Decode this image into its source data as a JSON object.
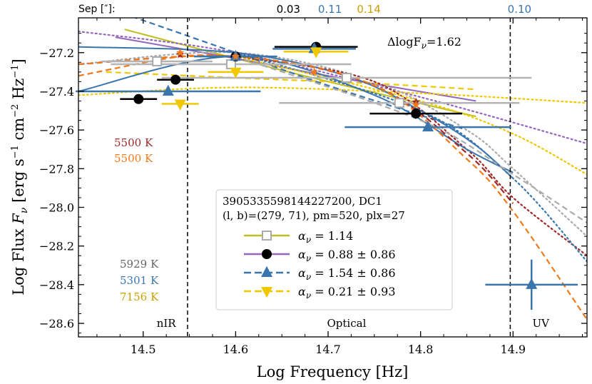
{
  "chart_data": {
    "type": "scatter",
    "xlabel": "Log Frequency [Hz]",
    "ylabel": "Log Flux F_ν [erg s⁻¹ cm⁻² Hz⁻¹]",
    "ylabel_parts": {
      "main": "Log Flux ",
      "F": "F",
      "nu": "ν",
      "open": " [erg s",
      "m1": "−1",
      "cm": " cm",
      "m2": "−2",
      "hz": " Hz",
      "m3": "−1",
      "close": "]"
    },
    "xlim": [
      14.43,
      14.98
    ],
    "ylim": [
      -28.67,
      -27.02
    ],
    "xticks": [
      {
        "value": 14.5,
        "label": "14.5"
      },
      {
        "value": 14.6,
        "label": "14.6"
      },
      {
        "value": 14.7,
        "label": "14.7"
      },
      {
        "value": 14.8,
        "label": "14.8"
      },
      {
        "value": 14.9,
        "label": "14.9"
      }
    ],
    "yticks": [
      {
        "value": -27.2,
        "label": "−27.2"
      },
      {
        "value": -27.4,
        "label": "−27.4"
      },
      {
        "value": -27.6,
        "label": "−27.6"
      },
      {
        "value": -27.8,
        "label": "−27.8"
      },
      {
        "value": -28.0,
        "label": "−28.0"
      },
      {
        "value": -28.2,
        "label": "−28.2"
      },
      {
        "value": -28.4,
        "label": "−28.4"
      },
      {
        "value": -28.6,
        "label": "−28.6"
      }
    ],
    "vlines": [
      14.548,
      14.897
    ],
    "region_labels": [
      {
        "text": "nIR",
        "x": 14.525,
        "y": -28.6
      },
      {
        "text": "Optical",
        "x": 14.72,
        "y": -28.6
      },
      {
        "text": "UV",
        "x": 14.93,
        "y": -28.6
      }
    ],
    "sep": {
      "label": "Sep [″]:",
      "values": [
        {
          "text": "0.03",
          "color": "#000000",
          "x": 14.657
        },
        {
          "text": "0.11",
          "color": "#3a76ad",
          "x": 14.702
        },
        {
          "text": "0.14",
          "color": "#c9a100",
          "x": 14.744
        },
        {
          "text": "0.10",
          "color": "#3a76ad",
          "x": 14.907
        }
      ]
    },
    "delta_label": "ΔlogF_ν=1.62",
    "delta_parts": {
      "pre": "ΔlogF",
      "sub": "ν",
      "post": "=1.62"
    },
    "temps_top": [
      {
        "text": "5500 K",
        "color": "#a02828"
      },
      {
        "text": "5500 K",
        "color": "#f07a1a"
      }
    ],
    "temps_bottom": [
      {
        "text": "5929 K",
        "color": "#666666"
      },
      {
        "text": "5301 K",
        "color": "#3a76ad"
      },
      {
        "text": "7156 K",
        "color": "#c9a100"
      }
    ],
    "legend": {
      "position": "center-right",
      "title1": "3905335598144227200, DC1",
      "title2": "(l, b)=(279, 71), pm=520, plx=27",
      "entries": [
        {
          "label": "α_ν = 1.14",
          "alpha": "1.14",
          "marker": "square-open",
          "color": "#bfbf1f",
          "line": "solid"
        },
        {
          "label": "α_ν = 0.88 ± 0.86",
          "alpha": "0.88 ± 0.86",
          "marker": "circle",
          "color": "#9467bd",
          "line": "solid"
        },
        {
          "label": "α_ν = 1.54 ± 0.86",
          "alpha": "1.54 ± 0.86",
          "marker": "triangle-up",
          "color": "#3a76ad",
          "line": "dashed"
        },
        {
          "label": "α_ν = 0.21 ± 0.93",
          "alpha": "0.21 ± 0.93",
          "marker": "triangle-down",
          "color": "#f0c800",
          "line": "dashed"
        }
      ]
    },
    "series": [
      {
        "name": "gray squares",
        "marker": "square-open",
        "color": "#aaaaaa",
        "points": [
          {
            "x": 14.515,
            "y": -27.245,
            "xerr": 0.06
          },
          {
            "x": 14.595,
            "y": -27.26,
            "xerr": 0.13
          },
          {
            "x": 14.72,
            "y": -27.33,
            "xerr": 0.2
          },
          {
            "x": 14.777,
            "y": -27.46,
            "xerr": 0.13
          }
        ]
      },
      {
        "name": "black circles",
        "marker": "circle",
        "color": "#000000",
        "points": [
          {
            "x": 14.495,
            "y": -27.44,
            "xerr": 0.02
          },
          {
            "x": 14.535,
            "y": -27.34,
            "xerr": 0.02
          },
          {
            "x": 14.6,
            "y": -27.22,
            "xerr": 0.03
          },
          {
            "x": 14.687,
            "y": -27.17,
            "xerr": 0.045
          },
          {
            "x": 14.795,
            "y": -27.515,
            "xerr": 0.05
          }
        ]
      },
      {
        "name": "blue triangles",
        "marker": "triangle-up",
        "color": "#3a76ad",
        "points": [
          {
            "x": 14.527,
            "y": -27.4,
            "xerr": 0.1
          },
          {
            "x": 14.6,
            "y": -27.22,
            "xerr": 0.045
          },
          {
            "x": 14.685,
            "y": -27.18,
            "xerr": 0.045
          },
          {
            "x": 14.808,
            "y": -27.585,
            "xerr": 0.09
          },
          {
            "x": 14.92,
            "y": -28.4,
            "xerr": 0.05,
            "yerr": 0.13
          }
        ]
      },
      {
        "name": "yellow triangles",
        "marker": "triangle-down",
        "color": "#f0c800",
        "points": [
          {
            "x": 14.54,
            "y": -27.465,
            "xerr": 0.02
          },
          {
            "x": 14.6,
            "y": -27.3,
            "xerr": 0.03
          },
          {
            "x": 14.687,
            "y": -27.195,
            "xerr": 0.035
          }
        ]
      },
      {
        "name": "red stars",
        "marker": "star",
        "color": "#a02828",
        "points": [
          {
            "x": 14.54,
            "y": -27.21
          },
          {
            "x": 14.6,
            "y": -27.22
          },
          {
            "x": 14.795,
            "y": -27.455
          }
        ]
      },
      {
        "name": "orange stars",
        "marker": "star",
        "color": "#f07a1a",
        "points": [
          {
            "x": 14.54,
            "y": -27.2
          },
          {
            "x": 14.6,
            "y": -27.22
          },
          {
            "x": 14.685,
            "y": -27.3
          },
          {
            "x": 14.795,
            "y": -27.47
          }
        ]
      }
    ],
    "curves": [
      {
        "name": "olive power law",
        "color": "#bfbf1f",
        "dash": "",
        "width": 2,
        "points": [
          [
            14.48,
            -27.08
          ],
          [
            14.6,
            -27.23
          ],
          [
            14.7,
            -27.35
          ],
          [
            14.86,
            -27.53
          ]
        ]
      },
      {
        "name": "purple power law",
        "color": "#9467bd",
        "dash": "",
        "width": 2,
        "points": [
          [
            14.47,
            -27.12
          ],
          [
            14.6,
            -27.23
          ],
          [
            14.7,
            -27.32
          ],
          [
            14.86,
            -27.45
          ]
        ]
      },
      {
        "name": "blue power law",
        "color": "#3a76ad",
        "dash": "8,5",
        "width": 2.2,
        "points": [
          [
            14.45,
            -26.95
          ],
          [
            14.6,
            -27.2
          ],
          [
            14.7,
            -27.37
          ],
          [
            14.85,
            -27.6
          ]
        ]
      },
      {
        "name": "yellow power law",
        "color": "#f0c800",
        "dash": "8,5",
        "width": 2.2,
        "points": [
          [
            14.46,
            -27.3
          ],
          [
            14.6,
            -27.33
          ],
          [
            14.75,
            -27.36
          ],
          [
            14.86,
            -27.39
          ]
        ]
      },
      {
        "name": "purple dotted",
        "color": "#9467bd",
        "dash": "2,4",
        "width": 2.2,
        "points": [
          [
            14.43,
            -27.09
          ],
          [
            14.6,
            -27.2
          ],
          [
            14.8,
            -27.43
          ],
          [
            14.98,
            -27.67
          ]
        ]
      },
      {
        "name": "yellow dotted",
        "color": "#f0c800",
        "dash": "2,4",
        "width": 2.2,
        "points": [
          [
            14.43,
            -27.42
          ],
          [
            14.6,
            -27.38
          ],
          [
            14.8,
            -27.41
          ],
          [
            14.98,
            -27.46
          ]
        ]
      },
      {
        "name": "gray dotted",
        "color": "#aaaaaa",
        "dash": "2,4",
        "width": 2.2,
        "points": [
          [
            14.43,
            -27.26
          ],
          [
            14.6,
            -27.2
          ],
          [
            14.75,
            -27.35
          ],
          [
            14.85,
            -27.6
          ],
          [
            14.9,
            -27.8
          ],
          [
            14.98,
            -28.15
          ]
        ]
      },
      {
        "name": "red dotted",
        "color": "#a02828",
        "dash": "2,4",
        "width": 2.2,
        "points": [
          [
            14.6,
            -27.22
          ],
          [
            14.75,
            -27.35
          ],
          [
            14.85,
            -27.7
          ],
          [
            14.9,
            -27.95
          ],
          [
            14.98,
            -28.25
          ]
        ]
      },
      {
        "name": "blue dotted",
        "color": "#3a76ad",
        "dash": "2,4",
        "width": 2.2,
        "points": [
          [
            14.6,
            -27.2
          ],
          [
            14.8,
            -27.5
          ],
          [
            14.9,
            -27.85
          ],
          [
            14.98,
            -28.28
          ]
        ]
      },
      {
        "name": "gold dotted",
        "color": "#f0c800",
        "dash": "2,4",
        "width": 2.2,
        "points": [
          [
            14.6,
            -27.22
          ],
          [
            14.8,
            -27.45
          ],
          [
            14.9,
            -27.62
          ],
          [
            14.98,
            -27.83
          ]
        ]
      },
      {
        "name": "blue solid",
        "color": "#3a76ad",
        "dash": "",
        "width": 2,
        "points": [
          [
            14.43,
            -27.17
          ],
          [
            14.6,
            -27.2
          ],
          [
            14.72,
            -27.32
          ],
          [
            14.8,
            -27.5
          ],
          [
            14.86,
            -27.68
          ],
          [
            14.9,
            -27.85
          ]
        ]
      },
      {
        "name": "blue solid model 2",
        "color": "#3a76ad",
        "dash": "",
        "width": 2,
        "points": [
          [
            14.43,
            -27.4
          ],
          [
            14.6,
            -27.22
          ],
          [
            14.75,
            -27.42
          ],
          [
            14.85,
            -27.7
          ],
          [
            14.9,
            -27.82
          ]
        ]
      },
      {
        "name": "gray dashed",
        "color": "#aaaaaa",
        "dash": "8,5",
        "width": 2.2,
        "points": [
          [
            14.6,
            -27.22
          ],
          [
            14.8,
            -27.55
          ],
          [
            14.9,
            -27.83
          ],
          [
            14.98,
            -28.08
          ]
        ]
      },
      {
        "name": "red dashed",
        "color": "#a02828",
        "dash": "8,5",
        "width": 2.2,
        "points": [
          [
            14.43,
            -27.26
          ],
          [
            14.6,
            -27.22
          ],
          [
            14.75,
            -27.37
          ],
          [
            14.85,
            -27.72
          ],
          [
            14.9,
            -27.98
          ]
        ]
      },
      {
        "name": "orange dashed",
        "color": "#f07a1a",
        "dash": "8,5",
        "width": 2.2,
        "points": [
          [
            14.43,
            -27.26
          ],
          [
            14.6,
            -27.22
          ],
          [
            14.75,
            -27.37
          ],
          [
            14.85,
            -27.75
          ],
          [
            14.9,
            -28.02
          ],
          [
            14.98,
            -28.58
          ]
        ]
      },
      {
        "name": "orange dashed 2",
        "color": "#f07a1a",
        "dash": "8,5",
        "width": 2.2,
        "points": [
          [
            14.43,
            -27.32
          ],
          [
            14.54,
            -27.22
          ],
          [
            14.6,
            -27.22
          ]
        ]
      }
    ]
  }
}
